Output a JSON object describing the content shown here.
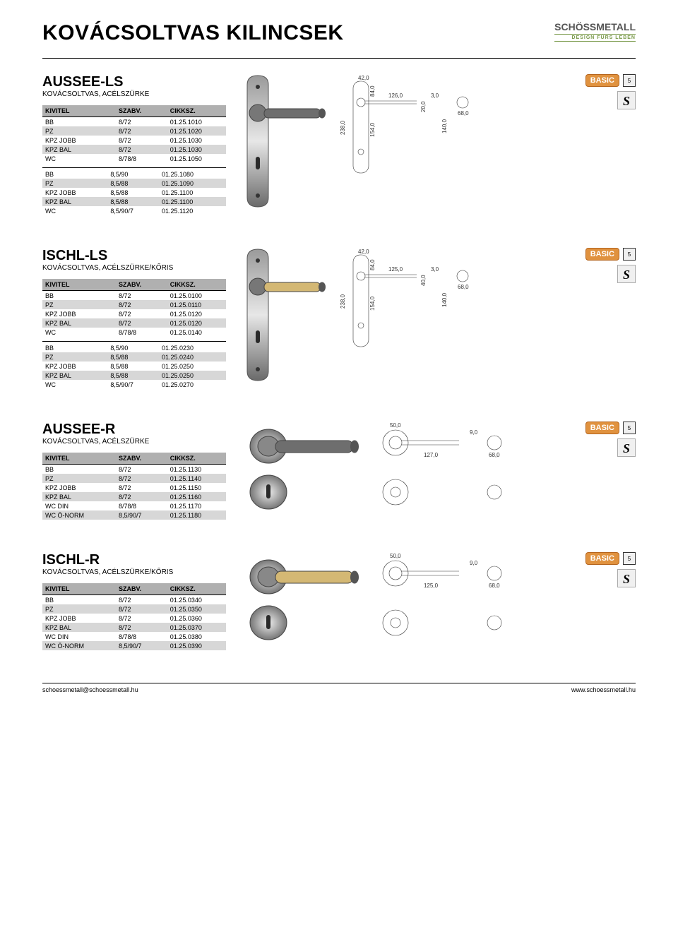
{
  "page": {
    "main_title": "KOVÁCSOLTVAS KILINCSEK",
    "logo_name": "SCHÖSSMETALL",
    "logo_tagline": "DESIGN FÜRS LEBEN"
  },
  "col_headers": {
    "c1": "KIVITEL",
    "c2": "SZABV.",
    "c3": "CIKKSZ."
  },
  "badge": {
    "basic": "BASIC",
    "warranty": "5",
    "s": "S"
  },
  "products": [
    {
      "title": "AUSSEE-LS",
      "subtitle": "KOVÁCSOLTVAS, ACÉLSZÜRKE",
      "layout": "plate",
      "rows1": [
        [
          "BB",
          "8/72",
          "01.25.1010"
        ],
        [
          "PZ",
          "8/72",
          "01.25.1020"
        ],
        [
          "KPZ JOBB",
          "8/72",
          "01.25.1030"
        ],
        [
          "KPZ BAL",
          "8/72",
          "01.25.1030"
        ],
        [
          "WC",
          "8/78/8",
          "01.25.1050"
        ]
      ],
      "rows2": [
        [
          "BB",
          "8,5/90",
          "01.25.1080"
        ],
        [
          "PZ",
          "8,5/88",
          "01.25.1090"
        ],
        [
          "KPZ JOBB",
          "8,5/88",
          "01.25.1100"
        ],
        [
          "KPZ BAL",
          "8,5/88",
          "01.25.1100"
        ],
        [
          "WC",
          "8,5/90/7",
          "01.25.1120"
        ]
      ],
      "handle_grip_color": "#6e6e6e",
      "dims": {
        "w": "42,0",
        "h": "238,0",
        "spacing": "154,0",
        "top": "84,0",
        "handle_len": "126,0",
        "thick": "3,0",
        "handle_h": "20,0",
        "low": "140,0",
        "end": "68,0"
      }
    },
    {
      "title": "ISCHL-LS",
      "subtitle": "KOVÁCSOLTVAS, ACÉLSZÜRKE/KŐRIS",
      "layout": "plate",
      "rows1": [
        [
          "BB",
          "8/72",
          "01.25.0100"
        ],
        [
          "PZ",
          "8/72",
          "01.25.0110"
        ],
        [
          "KPZ JOBB",
          "8/72",
          "01.25.0120"
        ],
        [
          "KPZ BAL",
          "8/72",
          "01.25.0120"
        ],
        [
          "WC",
          "8/78/8",
          "01.25.0140"
        ]
      ],
      "rows2": [
        [
          "BB",
          "8,5/90",
          "01.25.0230"
        ],
        [
          "PZ",
          "8,5/88",
          "01.25.0240"
        ],
        [
          "KPZ JOBB",
          "8,5/88",
          "01.25.0250"
        ],
        [
          "KPZ BAL",
          "8,5/88",
          "01.25.0250"
        ],
        [
          "WC",
          "8,5/90/7",
          "01.25.0270"
        ]
      ],
      "handle_grip_color": "#d4b874",
      "dims": {
        "w": "42,0",
        "h": "238,0",
        "spacing": "154,0",
        "top": "84,0",
        "handle_len": "125,0",
        "thick": "3,0",
        "handle_h": "40,0",
        "low": "140,0",
        "end": "68,0"
      }
    },
    {
      "title": "AUSSEE-R",
      "subtitle": "KOVÁCSOLTVAS, ACÉLSZÜRKE",
      "layout": "rose",
      "rows1": [
        [
          "BB",
          "8/72",
          "01.25.1130"
        ],
        [
          "PZ",
          "8/72",
          "01.25.1140"
        ],
        [
          "KPZ JOBB",
          "8/72",
          "01.25.1150"
        ],
        [
          "KPZ BAL",
          "8/72",
          "01.25.1160"
        ],
        [
          "WC DIN",
          "8/78/8",
          "01.25.1170"
        ],
        [
          "WC Ö-NORM",
          "8,5/90/7",
          "01.25.1180"
        ]
      ],
      "rows2": [],
      "handle_grip_color": "#6e6e6e",
      "dims": {
        "rose_d": "50,0",
        "thick": "9,0",
        "handle_len": "127,0",
        "end": "68,0"
      }
    },
    {
      "title": "ISCHL-R",
      "subtitle": "KOVÁCSOLTVAS, ACÉLSZÜRKE/KŐRIS",
      "layout": "rose",
      "rows1": [
        [
          "BB",
          "8/72",
          "01.25.0340"
        ],
        [
          "PZ",
          "8/72",
          "01.25.0350"
        ],
        [
          "KPZ JOBB",
          "8/72",
          "01.25.0360"
        ],
        [
          "KPZ BAL",
          "8/72",
          "01.25.0370"
        ],
        [
          "WC DIN",
          "8/78/8",
          "01.25.0380"
        ],
        [
          "WC Ö-NORM",
          "8,5/90/7",
          "01.25.0390"
        ]
      ],
      "rows2": [],
      "handle_grip_color": "#d4b874",
      "dims": {
        "rose_d": "50,0",
        "thick": "9,0",
        "handle_len": "125,0",
        "end": "68,0"
      }
    }
  ],
  "footer": {
    "email": "schoessmetall@schoessmetall.hu",
    "url": "www.schoessmetall.hu"
  }
}
